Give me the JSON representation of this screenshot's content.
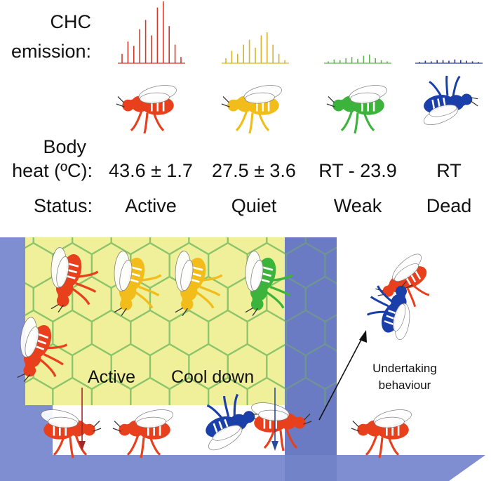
{
  "row_labels": {
    "chc_line1": "CHC",
    "chc_line2": "emission:",
    "heat_line1": "Body",
    "heat_line2": "heat (ºC):",
    "status": "Status:"
  },
  "columns": [
    {
      "color": "#e8401c",
      "spec_color": "#d23a2a",
      "heat": "43.6 ± 1.7",
      "status": "Active",
      "peaks": [
        0.15,
        0.35,
        0.28,
        0.55,
        0.7,
        0.45,
        0.9,
        1.0,
        0.6,
        0.3,
        0.1
      ]
    },
    {
      "color": "#f2bd1a",
      "spec_color": "#d9b22a",
      "heat": "27.5 ± 3.6",
      "status": "Quiet",
      "peaks": [
        0.08,
        0.2,
        0.15,
        0.3,
        0.38,
        0.25,
        0.45,
        0.5,
        0.3,
        0.15,
        0.05
      ]
    },
    {
      "color": "#3cb43c",
      "spec_color": "#5cb84a",
      "heat": "RT - 23.9",
      "status": "Weak",
      "peaks": [
        0.03,
        0.06,
        0.05,
        0.08,
        0.1,
        0.07,
        0.12,
        0.14,
        0.08,
        0.05,
        0.03
      ]
    },
    {
      "color": "#1a3fa8",
      "spec_color": "#2a3aa0",
      "heat": "RT",
      "status": "Dead",
      "peaks": [
        0.02,
        0.04,
        0.03,
        0.05,
        0.05,
        0.04,
        0.06,
        0.05,
        0.04,
        0.03,
        0.02
      ]
    }
  ],
  "scene": {
    "active_label": "Active",
    "active_color": "#d9603a",
    "cooldown_label": "Cool down",
    "cooldown_color": "#2a4a9a",
    "undertaking_line1": "Undertaking",
    "undertaking_line2": "behaviour",
    "wall_color": "#7f8ed0",
    "comb_color": "#f0ef9a",
    "hex_color": "#8cc46c"
  }
}
